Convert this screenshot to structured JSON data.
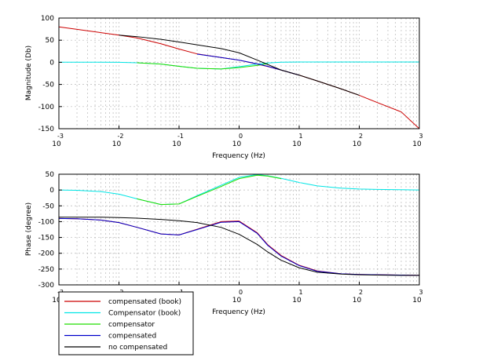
{
  "chart_data": [
    {
      "type": "line",
      "title": "",
      "xlabel": "Frequency (Hz)",
      "ylabel": "Magnitude (Db)",
      "xscale": "log",
      "xlim": [
        0.001,
        1000
      ],
      "ylim": [
        -150,
        100
      ],
      "x_ticks": [
        {
          "base": "10",
          "exp": "-3"
        },
        {
          "base": "10",
          "exp": "-2"
        },
        {
          "base": "10",
          "exp": "-1"
        },
        {
          "base": "10",
          "exp": "0"
        },
        {
          "base": "10",
          "exp": "1"
        },
        {
          "base": "10",
          "exp": "2"
        },
        {
          "base": "10",
          "exp": "3"
        }
      ],
      "y_ticks": [
        "-150",
        "-100",
        "-50",
        "0",
        "50",
        "100"
      ],
      "grid": true,
      "x": [
        0.001,
        0.002,
        0.005,
        0.01,
        0.02,
        0.05,
        0.1,
        0.2,
        0.5,
        1,
        2,
        3,
        5,
        10,
        20,
        50,
        100,
        200,
        500,
        1000
      ],
      "series": [
        {
          "name": "compensated (book)",
          "color": "#cc0000",
          "values": [
            80,
            74.5,
            67,
            61.5,
            55,
            42,
            30,
            19,
            11,
            4.8,
            -4,
            -9.5,
            -17.5,
            -29,
            -42,
            -60,
            -74.5,
            -91,
            -112,
            -150
          ]
        },
        {
          "name": "Compensator (book)",
          "color": "#00e5e5",
          "values": [
            0.3,
            0.3,
            0.2,
            0.1,
            -1,
            -4,
            -9,
            -13.5,
            -15,
            -10,
            -4,
            -1.5,
            0.3,
            0.7,
            0.7,
            0.8,
            0.8,
            0.8,
            0.8,
            0.8
          ]
        },
        {
          "name": "compensator",
          "color": "#22dd00",
          "values": [
            null,
            null,
            null,
            null,
            -1,
            -4,
            -9,
            -13.5,
            -15,
            -12,
            -7,
            -3,
            null,
            null,
            null,
            null,
            null,
            null,
            null,
            null
          ]
        },
        {
          "name": "compensated",
          "color": "#0000cc",
          "values": [
            null,
            null,
            null,
            null,
            null,
            null,
            null,
            18.5,
            11,
            5,
            -3.5,
            -9,
            -17.5,
            -29,
            null,
            null,
            null,
            null,
            null,
            null
          ]
        },
        {
          "name": "no compensated",
          "color": "#000000",
          "values": [
            null,
            null,
            null,
            61.5,
            58,
            52,
            46,
            39.5,
            31,
            21.5,
            5,
            -5,
            -17.5,
            -29,
            -42,
            -60,
            -74.5,
            null,
            null,
            null
          ]
        }
      ]
    },
    {
      "type": "line",
      "title": "",
      "xlabel": "Frequency (Hz)",
      "ylabel": "Phase (degree)",
      "xscale": "log",
      "xlim": [
        0.001,
        1000
      ],
      "ylim": [
        -300,
        50
      ],
      "x_ticks": [
        {
          "base": "10",
          "exp": "-3"
        },
        {
          "base": "10",
          "exp": "-2"
        },
        {
          "base": "10",
          "exp": "-1"
        },
        {
          "base": "10",
          "exp": "0"
        },
        {
          "base": "10",
          "exp": "1"
        },
        {
          "base": "10",
          "exp": "2"
        },
        {
          "base": "10",
          "exp": "3"
        }
      ],
      "y_ticks": [
        "-300",
        "-250",
        "-200",
        "-150",
        "-100",
        "-50",
        "0",
        "50"
      ],
      "grid": true,
      "legend_position": "bottom-left",
      "x": [
        0.001,
        0.002,
        0.005,
        0.01,
        0.02,
        0.05,
        0.1,
        0.2,
        0.5,
        1,
        2,
        3,
        5,
        10,
        20,
        50,
        100,
        200,
        500,
        1000
      ],
      "series": [
        {
          "name": "compensated (book)",
          "color": "#cc0000",
          "values": [
            -90,
            -91,
            -95,
            -103,
            -118,
            -139,
            -142,
            -124,
            -100,
            -98,
            -135,
            -173,
            -207,
            -238,
            -256,
            -265,
            -267,
            -268,
            -269,
            -270
          ]
        },
        {
          "name": "Compensator (book)",
          "color": "#00e5e5",
          "values": [
            0,
            -1,
            -5,
            -13,
            -28,
            -46,
            -44,
            -18,
            15,
            40,
            49,
            45,
            37,
            24,
            13,
            6,
            3,
            2,
            1,
            0
          ]
        },
        {
          "name": "compensator",
          "color": "#22dd00",
          "values": [
            null,
            null,
            null,
            null,
            -28,
            -46,
            -44,
            -20,
            11,
            36,
            47,
            44,
            36,
            null,
            null,
            null,
            null,
            null,
            null,
            null
          ]
        },
        {
          "name": "compensated",
          "color": "#0000cc",
          "values": [
            -90,
            -91,
            -95,
            -103,
            -118,
            -139,
            -142,
            -125,
            -102,
            -100,
            -137,
            -175,
            -209,
            -239,
            -257,
            -265,
            -267,
            -268,
            -269,
            -270
          ]
        },
        {
          "name": "no compensated",
          "color": "#000000",
          "values": [
            -86,
            -86,
            -86,
            -87,
            -89,
            -93,
            -97,
            -103,
            -118,
            -140,
            -172,
            -196,
            -222,
            -246,
            -260,
            -266,
            -268,
            -269,
            -270,
            -270
          ]
        }
      ]
    }
  ]
}
